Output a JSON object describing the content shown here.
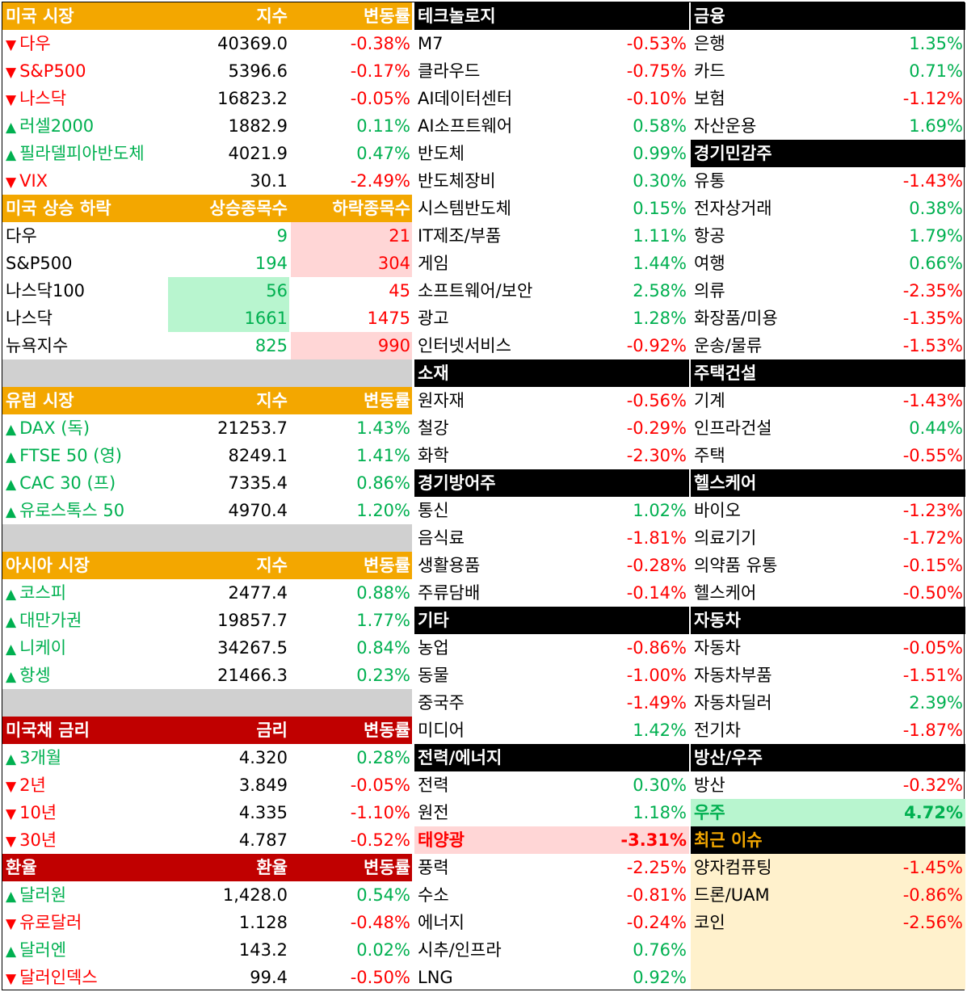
{
  "us_market": {
    "title": "미국 시장",
    "col_index": "지수",
    "col_change": "변동률",
    "rows": [
      {
        "dir": "▼",
        "name": "다우",
        "value": "40369.0",
        "change": "-0.38%"
      },
      {
        "dir": "▼",
        "name": "S&P500",
        "value": "5396.6",
        "change": "-0.17%"
      },
      {
        "dir": "▼",
        "name": "나스닥",
        "value": "16823.2",
        "change": "-0.05%"
      },
      {
        "dir": "▲",
        "name": "러셀2000",
        "value": "1882.9",
        "change": "0.11%"
      },
      {
        "dir": "▲",
        "name": "필라델피아반도체",
        "value": "4021.9",
        "change": "0.47%"
      },
      {
        "dir": "▼",
        "name": "VIX",
        "value": "30.1",
        "change": "-2.49%"
      }
    ]
  },
  "us_breadth": {
    "title": "미국 상승 하락",
    "col_up": "상승종목수",
    "col_down": "하락종목수",
    "rows": [
      {
        "name": "다우",
        "up": "9",
        "down": "21"
      },
      {
        "name": "S&P500",
        "up": "194",
        "down": "304"
      },
      {
        "name": "나스닥100",
        "up": "56",
        "down": "45"
      },
      {
        "name": "나스닥",
        "up": "1661",
        "down": "1475"
      },
      {
        "name": "뉴욕지수",
        "up": "825",
        "down": "990"
      }
    ]
  },
  "eu_market": {
    "title": "유럽 시장",
    "col_index": "지수",
    "col_change": "변동률",
    "rows": [
      {
        "dir": "▲",
        "name": "DAX (독)",
        "value": "21253.7",
        "change": "1.43%"
      },
      {
        "dir": "▲",
        "name": "FTSE 50 (영)",
        "value": "8249.1",
        "change": "1.41%"
      },
      {
        "dir": "▲",
        "name": "CAC 30 (프)",
        "value": "7335.4",
        "change": "0.86%"
      },
      {
        "dir": "▲",
        "name": "유로스톡스 50",
        "value": "4970.4",
        "change": "1.20%"
      }
    ]
  },
  "asia_market": {
    "title": "아시아 시장",
    "col_index": "지수",
    "col_change": "변동률",
    "rows": [
      {
        "dir": "▲",
        "name": "코스피",
        "value": "2477.4",
        "change": "0.88%"
      },
      {
        "dir": "▲",
        "name": "대만가권",
        "value": "19857.7",
        "change": "1.77%"
      },
      {
        "dir": "▲",
        "name": "니케이",
        "value": "34267.5",
        "change": "0.84%"
      },
      {
        "dir": "▲",
        "name": "항셍",
        "value": "21466.3",
        "change": "0.23%"
      }
    ]
  },
  "us_bonds": {
    "title": "미국채 금리",
    "col_rate": "금리",
    "col_change": "변동률",
    "rows": [
      {
        "dir": "▲",
        "name": "3개월",
        "value": "4.320",
        "change": "0.28%"
      },
      {
        "dir": "▼",
        "name": "2년",
        "value": "3.849",
        "change": "-0.05%"
      },
      {
        "dir": "▼",
        "name": "10년",
        "value": "4.335",
        "change": "-1.10%"
      },
      {
        "dir": "▼",
        "name": "30년",
        "value": "4.787",
        "change": "-0.52%"
      }
    ]
  },
  "fx": {
    "title": "환율",
    "col_rate": "환율",
    "col_change": "변동률",
    "rows": [
      {
        "dir": "▲",
        "name": "달러원",
        "value": "1,428.0",
        "change": "0.54%"
      },
      {
        "dir": "▼",
        "name": "유로달러",
        "value": "1.128",
        "change": "-0.48%"
      },
      {
        "dir": "▲",
        "name": "달러엔",
        "value": "143.2",
        "change": "0.02%"
      },
      {
        "dir": "▼",
        "name": "달러인덱스",
        "value": "99.4",
        "change": "-0.50%"
      }
    ]
  },
  "sectors_mid": [
    {
      "title": "테크놀로지",
      "rows": [
        {
          "name": "M7",
          "change": "-0.53%"
        },
        {
          "name": "클라우드",
          "change": "-0.75%"
        },
        {
          "name": "AI데이터센터",
          "change": "-0.10%"
        },
        {
          "name": "AI소프트웨어",
          "change": "0.58%"
        },
        {
          "name": "반도체",
          "change": "0.99%"
        },
        {
          "name": "반도체장비",
          "change": "0.30%"
        },
        {
          "name": "시스템반도체",
          "change": "0.15%"
        },
        {
          "name": "IT제조/부품",
          "change": "1.11%"
        },
        {
          "name": "게임",
          "change": "1.44%"
        },
        {
          "name": "소프트웨어/보안",
          "change": "2.58%"
        },
        {
          "name": "광고",
          "change": "1.28%"
        },
        {
          "name": "인터넷서비스",
          "change": "-0.92%"
        }
      ]
    },
    {
      "title": "소재",
      "rows": [
        {
          "name": "원자재",
          "change": "-0.56%"
        },
        {
          "name": "철강",
          "change": "-0.29%"
        },
        {
          "name": "화학",
          "change": "-2.30%"
        }
      ]
    },
    {
      "title": "경기방어주",
      "rows": [
        {
          "name": "통신",
          "change": "1.02%"
        },
        {
          "name": "음식료",
          "change": "-1.81%"
        },
        {
          "name": "생활용품",
          "change": "-0.28%"
        },
        {
          "name": "주류담배",
          "change": "-0.14%"
        }
      ]
    },
    {
      "title": "기타",
      "rows": [
        {
          "name": "농업",
          "change": "-0.86%"
        },
        {
          "name": "동물",
          "change": "-1.00%"
        },
        {
          "name": "중국주",
          "change": "-1.49%"
        },
        {
          "name": "미디어",
          "change": "1.42%"
        }
      ]
    },
    {
      "title": "전력/에너지",
      "rows": [
        {
          "name": "전력",
          "change": "0.30%"
        },
        {
          "name": "원전",
          "change": "1.18%"
        },
        {
          "name": "태양광",
          "change": "-3.31%"
        },
        {
          "name": "풍력",
          "change": "-2.25%"
        },
        {
          "name": "수소",
          "change": "-0.81%"
        },
        {
          "name": "에너지",
          "change": "-0.24%"
        },
        {
          "name": "시추/인프라",
          "change": "0.76%"
        },
        {
          "name": "LNG",
          "change": "0.92%"
        }
      ]
    }
  ],
  "sectors_right": [
    {
      "title": "금융",
      "rows": [
        {
          "name": "은행",
          "change": "1.35%"
        },
        {
          "name": "카드",
          "change": "0.71%"
        },
        {
          "name": "보험",
          "change": "-1.12%"
        },
        {
          "name": "자산운용",
          "change": "1.69%"
        }
      ]
    },
    {
      "title": "경기민감주",
      "rows": [
        {
          "name": "유통",
          "change": "-1.43%"
        },
        {
          "name": "전자상거래",
          "change": "0.38%"
        },
        {
          "name": "항공",
          "change": "1.79%"
        },
        {
          "name": "여행",
          "change": "0.66%"
        },
        {
          "name": "의류",
          "change": "-2.35%"
        },
        {
          "name": "화장품/미용",
          "change": "-1.35%"
        },
        {
          "name": "운송/물류",
          "change": "-1.53%"
        }
      ]
    },
    {
      "title": "주택건설",
      "rows": [
        {
          "name": "기계",
          "change": "-1.43%"
        },
        {
          "name": "인프라건설",
          "change": "0.44%"
        },
        {
          "name": "주택",
          "change": "-0.55%"
        }
      ]
    },
    {
      "title": "헬스케어",
      "rows": [
        {
          "name": "바이오",
          "change": "-1.23%"
        },
        {
          "name": "의료기기",
          "change": "-1.72%"
        },
        {
          "name": "의약품 유통",
          "change": "-0.15%"
        },
        {
          "name": "헬스케어",
          "change": "-0.50%"
        }
      ]
    },
    {
      "title": "자동차",
      "rows": [
        {
          "name": "자동차",
          "change": "-0.05%"
        },
        {
          "name": "자동차부품",
          "change": "-1.51%"
        },
        {
          "name": "자동차딜러",
          "change": "2.39%"
        },
        {
          "name": "전기차",
          "change": "-1.87%"
        }
      ]
    },
    {
      "title": "방산/우주",
      "rows": [
        {
          "name": "방산",
          "change": "-0.32%"
        },
        {
          "name": "우주",
          "change": "4.72%"
        }
      ]
    },
    {
      "title": "최근 이슈",
      "rows": [
        {
          "name": "양자컴퓨팅",
          "change": "-1.45%"
        },
        {
          "name": "드론/UAM",
          "change": "-0.86%"
        },
        {
          "name": "코인",
          "change": "-2.56%"
        }
      ]
    }
  ]
}
